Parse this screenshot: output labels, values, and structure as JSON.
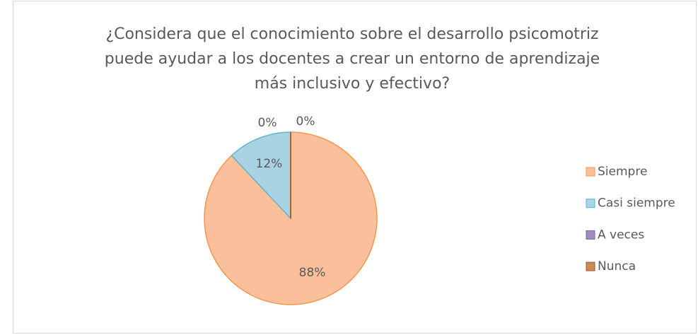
{
  "chart_data": {
    "type": "pie",
    "title": [
      "¿Considera que el conocimiento sobre el desarrollo psicomotriz",
      "puede ayudar a los docentes a crear un entorno de aprendizaje",
      "más inclusivo y efectivo?"
    ],
    "categories": [
      "Siempre",
      "Casi siempre",
      "A veces",
      "Nunca"
    ],
    "values": [
      88,
      12,
      0,
      0
    ],
    "value_labels": [
      "88%",
      "12%",
      "0%",
      "0%"
    ],
    "colors": [
      "#fbbf9c",
      "#a9d2e2",
      "#a08cc0",
      "#c98a55"
    ],
    "edge_colors": [
      "#f09a50",
      "#5fb4cc",
      "#7f64a2",
      "#9c5a2a"
    ],
    "legend": "right"
  }
}
